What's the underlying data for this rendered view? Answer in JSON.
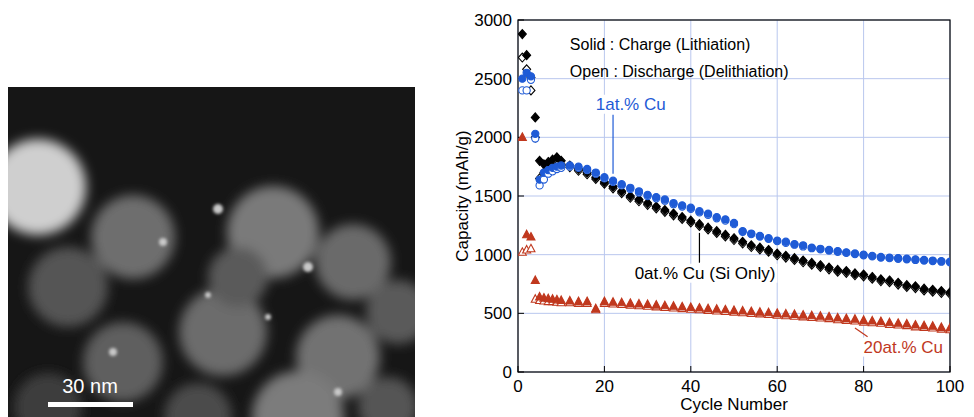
{
  "image": {
    "scale_bar": "30 nm"
  },
  "chart_data": {
    "type": "scatter",
    "xlabel": "Cycle Number",
    "ylabel": "Capacity (mAh/g)",
    "annotations": [
      "Solid : Charge (Lithiation)",
      "Open : Discharge (Delithiation)"
    ],
    "xlim": [
      0,
      100
    ],
    "xticks": [
      0,
      20,
      40,
      60,
      80,
      100
    ],
    "ylim": [
      0,
      3000
    ],
    "yticks": [
      0,
      500,
      1000,
      1500,
      2000,
      2500,
      3000
    ],
    "grid": true,
    "x": [
      1,
      2,
      3,
      4,
      5,
      6,
      7,
      8,
      9,
      10,
      12,
      14,
      16,
      18,
      20,
      22,
      24,
      26,
      28,
      30,
      32,
      34,
      36,
      38,
      40,
      42,
      44,
      46,
      48,
      50,
      52,
      54,
      56,
      58,
      60,
      62,
      64,
      66,
      68,
      70,
      72,
      74,
      76,
      78,
      80,
      82,
      84,
      86,
      88,
      90,
      92,
      94,
      96,
      98,
      100
    ],
    "series": [
      {
        "name": "0at.% Cu (Si Only)",
        "color": "#000000",
        "marker": "diamond",
        "values": [
          2880,
          2700,
          2510,
          2170,
          1800,
          1770,
          1790,
          1810,
          1830,
          1800,
          1760,
          1730,
          1700,
          1660,
          1620,
          1580,
          1540,
          1500,
          1470,
          1440,
          1410,
          1380,
          1350,
          1320,
          1290,
          1260,
          1230,
          1200,
          1170,
          1140,
          1110,
          1080,
          1060,
          1040,
          1010,
          990,
          970,
          950,
          930,
          910,
          890,
          870,
          860,
          840,
          830,
          810,
          790,
          780,
          760,
          740,
          730,
          710,
          700,
          690,
          680
        ],
        "discharge_values": [
          2680,
          2580,
          2400,
          2000,
          1650,
          1700,
          1720,
          1740,
          1760,
          1770,
          1745,
          1715,
          1685,
          1645,
          1605,
          1565,
          1525,
          1485,
          1455,
          1425,
          1395,
          1365,
          1335,
          1305,
          1275,
          1245,
          1215,
          1185,
          1155,
          1125,
          1095,
          1065,
          1045,
          1025,
          995,
          975,
          955,
          935,
          915,
          895,
          875,
          855,
          845,
          825,
          815,
          795,
          775,
          765,
          745,
          725,
          715,
          695,
          685,
          675,
          665
        ]
      },
      {
        "name": "1at.% Cu",
        "color": "#1f5bd6",
        "marker": "circle",
        "values": [
          2500,
          2550,
          2520,
          2030,
          1640,
          1700,
          1720,
          1740,
          1750,
          1760,
          1760,
          1750,
          1730,
          1700,
          1660,
          1630,
          1600,
          1570,
          1540,
          1510,
          1490,
          1470,
          1440,
          1420,
          1400,
          1370,
          1350,
          1320,
          1300,
          1270,
          1200,
          1180,
          1160,
          1140,
          1120,
          1110,
          1090,
          1080,
          1060,
          1050,
          1040,
          1030,
          1020,
          1010,
          1000,
          990,
          980,
          975,
          970,
          965,
          960,
          955,
          950,
          945,
          940
        ],
        "discharge_values": [
          2400,
          2400,
          2490,
          1990,
          1590,
          1640,
          1690,
          1710,
          1730,
          1740,
          1750,
          1740,
          1720,
          1690,
          1650,
          1620,
          1590,
          1560,
          1530,
          1500,
          1480,
          1460,
          1430,
          1410,
          1390,
          1360,
          1340,
          1310,
          1290,
          1260,
          1195,
          1175,
          1155,
          1135,
          1115,
          1100,
          1085,
          1070,
          1055,
          1045,
          1035,
          1025,
          1015,
          1005,
          995,
          985,
          975,
          970,
          965,
          960,
          955,
          950,
          945,
          940,
          935
        ]
      },
      {
        "name": "20at.% Cu",
        "color": "#c0381e",
        "marker": "triangle",
        "values": [
          2000,
          1170,
          1150,
          780,
          640,
          630,
          625,
          620,
          615,
          610,
          605,
          600,
          600,
          540,
          600,
          595,
          590,
          585,
          580,
          575,
          570,
          565,
          560,
          555,
          550,
          545,
          540,
          535,
          530,
          525,
          520,
          515,
          510,
          505,
          500,
          495,
          490,
          485,
          480,
          475,
          470,
          460,
          455,
          450,
          440,
          435,
          430,
          420,
          415,
          410,
          400,
          395,
          390,
          380,
          375
        ],
        "discharge_values": [
          1020,
          1040,
          1050,
          620,
          610,
          605,
          600,
          600,
          595,
          590,
          590,
          585,
          585,
          530,
          585,
          580,
          575,
          570,
          565,
          560,
          555,
          550,
          545,
          540,
          535,
          530,
          525,
          520,
          515,
          510,
          505,
          500,
          495,
          490,
          485,
          480,
          475,
          470,
          465,
          460,
          455,
          445,
          440,
          435,
          425,
          420,
          415,
          405,
          400,
          395,
          385,
          380,
          375,
          365,
          360
        ]
      }
    ]
  }
}
